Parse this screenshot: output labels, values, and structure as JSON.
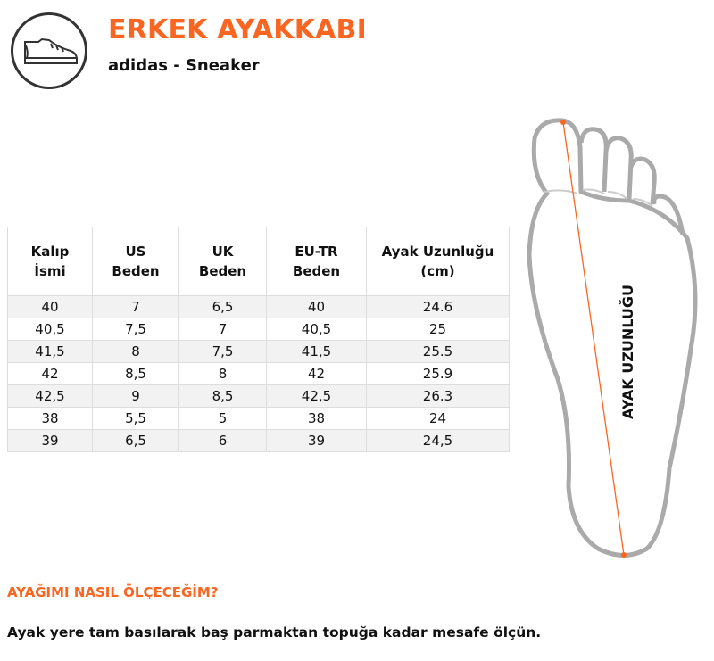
{
  "header": {
    "title": "ERKEK AYAKKABI",
    "subtitle": "adidas - Sneaker",
    "icon": "sneaker-icon"
  },
  "table": {
    "headers": [
      [
        "Kalıp",
        "İsmi"
      ],
      [
        "US",
        "Beden"
      ],
      [
        "UK",
        "Beden"
      ],
      [
        "EU-TR",
        "Beden"
      ],
      [
        "Ayak Uzunluğu",
        "(cm)"
      ]
    ],
    "rows": [
      [
        "40",
        "7",
        "6,5",
        "40",
        "24.6"
      ],
      [
        "40,5",
        "7,5",
        "7",
        "40,5",
        "25"
      ],
      [
        "41,5",
        "8",
        "7,5",
        "41,5",
        "25.5"
      ],
      [
        "42",
        "8,5",
        "8",
        "42",
        "25.9"
      ],
      [
        "42,5",
        "9",
        "8,5",
        "42,5",
        "26.3"
      ],
      [
        "38",
        "5,5",
        "5",
        "38",
        "24"
      ],
      [
        "39",
        "6,5",
        "6",
        "39",
        "24,5"
      ]
    ]
  },
  "foot": {
    "label": "AYAK UZUNLUĞU",
    "accent": "#fa6622"
  },
  "howto": {
    "question": "AYAĞIMI NASIL ÖLÇECEĞİM?",
    "answer": "Ayak yere tam basılarak baş parmaktan topuğa kadar mesafe ölçün."
  }
}
